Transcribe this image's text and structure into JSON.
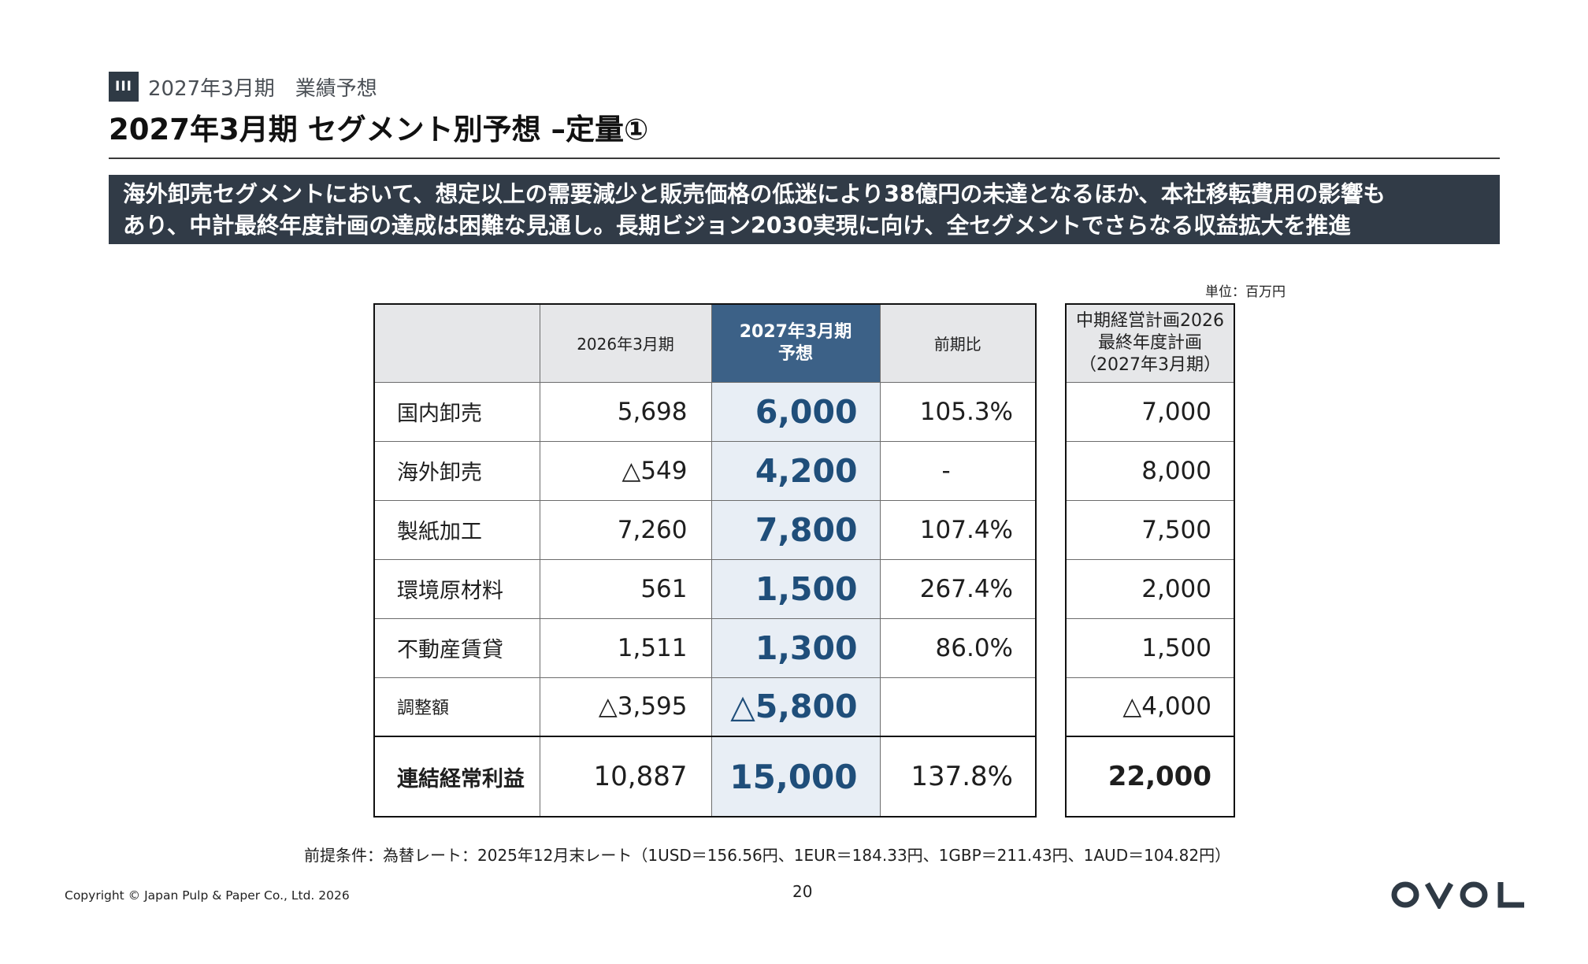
{
  "section": {
    "badge": "III",
    "label": "2027年3月期　業績予想"
  },
  "title": "2027年3月期 セグメント別予想 –定量①",
  "summary": {
    "line1": "海外卸売セグメントにおいて、想定以上の需要減少と販売価格の低迷により38億円の未達となるほか、本社移転費用の影響も",
    "line2": "あり、中計最終年度計画の達成は困難な見通し。長期ビジョン2030実現に向け、全セグメントでさらなる収益拡大を推進"
  },
  "unit": "単位：百万円",
  "table": {
    "headers": {
      "prev": "2026年3月期",
      "forecast_l1": "2027年3月期",
      "forecast_l2": "予想",
      "ratio": "前期比"
    },
    "plan_header": {
      "l1": "中期経営計画2026",
      "l2": "最終年度計画",
      "l3": "（2027年3月期）"
    },
    "rows": [
      {
        "segment": "国内卸売",
        "prev": "5,698",
        "forecast": "6,000",
        "ratio": "105.3%",
        "plan": "7,000"
      },
      {
        "segment": "海外卸売",
        "prev": "△549",
        "forecast": "4,200",
        "ratio": "-",
        "plan": "8,000"
      },
      {
        "segment": "製紙加工",
        "prev": "7,260",
        "forecast": "7,800",
        "ratio": "107.4%",
        "plan": "7,500"
      },
      {
        "segment": "環境原材料",
        "prev": "561",
        "forecast": "1,500",
        "ratio": "267.4%",
        "plan": "2,000"
      },
      {
        "segment": "不動産賃貸",
        "prev": "1,511",
        "forecast": "1,300",
        "ratio": "86.0%",
        "plan": "1,500"
      },
      {
        "segment": "調整額",
        "prev": "△3,595",
        "forecast": "△5,800",
        "ratio": "",
        "plan": "△4,000"
      },
      {
        "segment": "連結経常利益",
        "prev": "10,887",
        "forecast": "15,000",
        "ratio": "137.8%",
        "plan": "22,000"
      }
    ]
  },
  "assumption": "前提条件：為替レート：2025年12月末レート（1USD＝156.56円、1EUR＝184.33円、1GBP＝211.43円、1AUD＝104.82円）",
  "footer": {
    "copyright": "Copyright © Japan Pulp & Paper Co., Ltd. 2026",
    "page": "20",
    "logo": "OVOL"
  },
  "colors": {
    "header_band": "#313b47",
    "forecast_header": "#3c6187",
    "forecast_cell": "#e8eef5",
    "forecast_text": "#1f4e7a"
  }
}
